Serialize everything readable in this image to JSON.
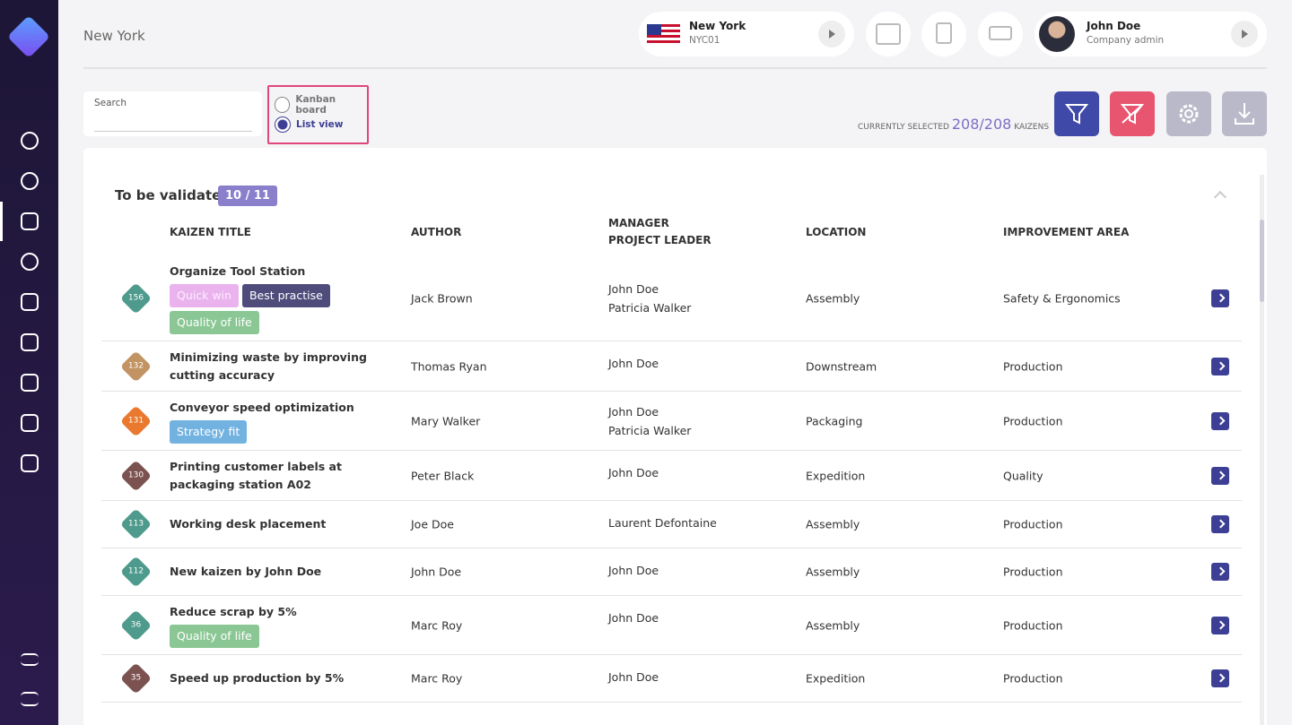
{
  "header": {
    "location": "New York",
    "site": {
      "name": "New York",
      "code": "NYC01"
    },
    "user": {
      "name": "John Doe",
      "role": "Company admin"
    }
  },
  "toolbar": {
    "search_label": "Search",
    "views": [
      "Kanban board",
      "List view"
    ],
    "selected_view": 1,
    "selection": {
      "prefix": "CURRENTLY SELECTED",
      "count": "208/208",
      "suffix": "KAIZENS"
    }
  },
  "group": {
    "title": "To be validated",
    "count": "10 / 11",
    "columns": [
      "KAIZEN TITLE",
      "AUTHOR",
      "MANAGER\nPROJECT LEADER",
      "LOCATION",
      "IMPROVEMENT AREA"
    ],
    "rows": [
      {
        "id": 156,
        "badge_color": "#4e9a8c",
        "title": "Organize Tool Station",
        "tags": [
          {
            "label": "Quick win",
            "color": "#eab3ee"
          },
          {
            "label": "Best practise",
            "color": "#4f4c7c"
          },
          {
            "label": "Quality of life",
            "color": "#8bc795"
          }
        ],
        "author": "Jack Brown",
        "managers": [
          "John Doe",
          "Patricia Walker"
        ],
        "location": "Assembly",
        "area": "Safety & Ergonomics"
      },
      {
        "id": 132,
        "badge_color": "#c29463",
        "title": "Minimizing waste by improving cutting accuracy",
        "tags": [],
        "author": "Thomas Ryan",
        "managers": [
          "John Doe"
        ],
        "location": "Downstream",
        "area": "Production"
      },
      {
        "id": 131,
        "badge_color": "#e9792f",
        "title": "Conveyor speed optimization",
        "tags": [
          {
            "label": "Strategy fit",
            "color": "#72b2e0"
          }
        ],
        "author": "Mary Walker",
        "managers": [
          "John Doe",
          "Patricia Walker"
        ],
        "location": "Packaging",
        "area": "Production"
      },
      {
        "id": 130,
        "badge_color": "#7c5250",
        "title": "Printing customer labels at packaging station A02",
        "tags": [],
        "author": "Peter Black",
        "managers": [
          "John Doe"
        ],
        "location": "Expedition",
        "area": "Quality"
      },
      {
        "id": 113,
        "badge_color": "#4e9a8c",
        "title": "Working desk placement",
        "tags": [],
        "author": "Joe Doe",
        "managers": [
          "Laurent Defontaine"
        ],
        "location": "Assembly",
        "area": "Production"
      },
      {
        "id": 112,
        "badge_color": "#4e9a8c",
        "title": "New kaizen by John Doe",
        "tags": [],
        "author": "John Doe",
        "managers": [
          "John Doe"
        ],
        "location": "Assembly",
        "area": "Production"
      },
      {
        "id": 36,
        "badge_color": "#4e9a8c",
        "title": "Reduce scrap by 5%",
        "tags": [
          {
            "label": "Quality of life",
            "color": "#8bc795"
          }
        ],
        "author": "Marc Roy",
        "managers": [
          "John Doe"
        ],
        "location": "Assembly",
        "area": "Production"
      },
      {
        "id": 35,
        "badge_color": "#7c5250",
        "title": "Speed up production by 5%",
        "tags": [],
        "author": "Marc Roy",
        "managers": [
          "John Doe"
        ],
        "location": "Expedition",
        "area": "Production"
      }
    ]
  }
}
